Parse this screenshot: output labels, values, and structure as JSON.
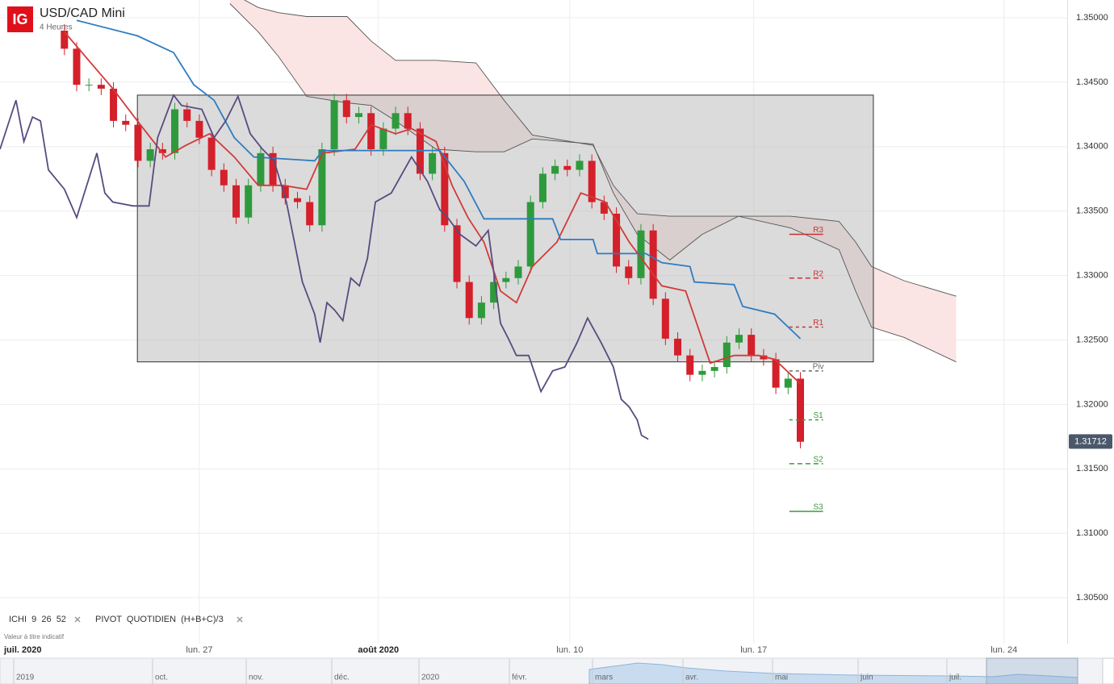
{
  "header": {
    "logo": "IG",
    "title": "USD/CAD Mini",
    "subtitle": "4 Heures"
  },
  "chart_data": {
    "type": "candlestick",
    "x": [
      10.5,
      12.5,
      14.5,
      16.5,
      18.5,
      20.5,
      22.5,
      24.5,
      26.5,
      28.5,
      30.5,
      32.5,
      34.5,
      36.5,
      38.5,
      40.5,
      42.5,
      44.5,
      46.5,
      48.5,
      50.5,
      52.5,
      54.5,
      56.5,
      58.5,
      60.5,
      62.5,
      64.5,
      66.5,
      68.5,
      70.5,
      72.5,
      74.5,
      76.5,
      78.5,
      80.5,
      82.5,
      84.5,
      86.5,
      88.5,
      90.5,
      92.5,
      94.5,
      96.5,
      98.5,
      100.5,
      102.5,
      104.5,
      106.5,
      108.5,
      110.5,
      112.5,
      114.5,
      116.5,
      118.5,
      120.5,
      122.5,
      124.5,
      126.5,
      128.5,
      130.5
    ],
    "open": [
      1.349,
      1.3476,
      1.3448,
      1.3448,
      1.3445,
      1.342,
      1.3417,
      1.3389,
      1.3398,
      1.3395,
      1.3429,
      1.342,
      1.3407,
      1.3382,
      1.337,
      1.3345,
      1.337,
      1.3395,
      1.337,
      1.336,
      1.3357,
      1.3339,
      1.3398,
      1.3436,
      1.3423,
      1.3426,
      1.3398,
      1.3414,
      1.3426,
      1.3414,
      1.3379,
      1.3395,
      1.3339,
      1.3295,
      1.3267,
      1.3279,
      1.3295,
      1.3298,
      1.3307,
      1.3357,
      1.3379,
      1.3385,
      1.3382,
      1.3389,
      1.3357,
      1.3348,
      1.3307,
      1.3298,
      1.3335,
      1.3282,
      1.3251,
      1.3238,
      1.3223,
      1.3226,
      1.3229,
      1.3248,
      1.3254,
      1.3238,
      1.3235,
      1.3213,
      1.322
    ],
    "high": [
      1.3495,
      1.3481,
      1.3453,
      1.3453,
      1.345,
      1.3425,
      1.3422,
      1.3403,
      1.3403,
      1.3434,
      1.3434,
      1.3425,
      1.3412,
      1.3387,
      1.3375,
      1.3375,
      1.34,
      1.34,
      1.3375,
      1.3365,
      1.3362,
      1.3403,
      1.3441,
      1.3441,
      1.3431,
      1.3431,
      1.3419,
      1.3431,
      1.3431,
      1.3419,
      1.34,
      1.34,
      1.3344,
      1.33,
      1.3284,
      1.33,
      1.3303,
      1.3312,
      1.3362,
      1.3384,
      1.339,
      1.339,
      1.3394,
      1.3394,
      1.3362,
      1.3353,
      1.3312,
      1.334,
      1.334,
      1.3287,
      1.3256,
      1.3243,
      1.3231,
      1.3234,
      1.3253,
      1.3259,
      1.3259,
      1.3243,
      1.324,
      1.3225,
      1.3225
    ],
    "low": [
      1.3471,
      1.3443,
      1.3443,
      1.344,
      1.3415,
      1.3412,
      1.3384,
      1.3384,
      1.339,
      1.339,
      1.3415,
      1.3402,
      1.3377,
      1.3365,
      1.334,
      1.334,
      1.3365,
      1.3365,
      1.3355,
      1.3352,
      1.3334,
      1.3334,
      1.3393,
      1.3418,
      1.3418,
      1.3393,
      1.3393,
      1.3409,
      1.3409,
      1.3374,
      1.3374,
      1.3334,
      1.329,
      1.3262,
      1.3262,
      1.3274,
      1.329,
      1.3293,
      1.3302,
      1.3352,
      1.3374,
      1.3377,
      1.3377,
      1.3352,
      1.3343,
      1.3302,
      1.3293,
      1.3293,
      1.3277,
      1.3246,
      1.3233,
      1.3218,
      1.3218,
      1.3221,
      1.3224,
      1.3243,
      1.3233,
      1.323,
      1.3208,
      1.3208,
      1.3166
    ],
    "close": [
      1.3476,
      1.3448,
      1.3448,
      1.3445,
      1.342,
      1.3417,
      1.3389,
      1.3398,
      1.3395,
      1.3429,
      1.342,
      1.3407,
      1.3382,
      1.337,
      1.3345,
      1.337,
      1.3395,
      1.337,
      1.336,
      1.3357,
      1.3339,
      1.3398,
      1.3436,
      1.3423,
      1.3426,
      1.3398,
      1.3414,
      1.3426,
      1.3414,
      1.3379,
      1.3395,
      1.3339,
      1.3295,
      1.3267,
      1.3279,
      1.3295,
      1.3298,
      1.3307,
      1.3357,
      1.3379,
      1.3385,
      1.3382,
      1.3389,
      1.3357,
      1.3348,
      1.3307,
      1.3298,
      1.3335,
      1.3282,
      1.3251,
      1.3238,
      1.3223,
      1.3226,
      1.3229,
      1.3248,
      1.3254,
      1.3238,
      1.3235,
      1.3213,
      1.322,
      1.3171
    ],
    "up_color": "#2e9a3c",
    "down_color": "#d4202a",
    "lines": [
      {
        "color": "#d23a3a",
        "x": [
          10.5,
          18.4,
          22.4,
          27,
          30.3,
          34.2,
          38.2,
          42.1,
          46.1,
          50,
          52.6,
          57.9,
          60.5,
          64.5,
          67.1,
          71.1,
          73.7,
          76.3,
          78.9,
          81.6,
          84.2,
          86.8,
          90.8,
          94.7,
          98.7,
          102.6,
          107.9,
          111.8,
          115.8,
          119.7,
          123.7,
          126.3,
          130.5
        ],
        "values": [
          1.3489,
          1.3445,
          1.342,
          1.3392,
          1.3401,
          1.341,
          1.3392,
          1.337,
          1.337,
          1.3367,
          1.3395,
          1.3398,
          1.3417,
          1.341,
          1.3414,
          1.3404,
          1.337,
          1.3345,
          1.3326,
          1.3288,
          1.3279,
          1.3307,
          1.3326,
          1.3364,
          1.3357,
          1.3326,
          1.3292,
          1.3288,
          1.3232,
          1.3238,
          1.3238,
          1.3235,
          1.3216
        ]
      },
      {
        "color": "#2f7bc0",
        "x": [
          12.5,
          22.4,
          28.3,
          31.6,
          34.9,
          38.2,
          41.4,
          51.3,
          52.6,
          71.7,
          75.7,
          78.9,
          90.1,
          91.4,
          96.7,
          97.4,
          105.3,
          107.9,
          112.5,
          113.2,
          119.7,
          121.1,
          126.3,
          130.5
        ],
        "values": [
          1.3498,
          1.3486,
          1.3473,
          1.3448,
          1.3436,
          1.3407,
          1.3392,
          1.3389,
          1.3397,
          1.3397,
          1.3373,
          1.3344,
          1.3344,
          1.3328,
          1.3328,
          1.3317,
          1.3317,
          1.331,
          1.3307,
          1.3295,
          1.3293,
          1.3276,
          1.327,
          1.3251
        ]
      },
      {
        "color": "#5a4a80",
        "x": [
          0,
          2.6,
          3.9,
          5.3,
          6.6,
          7.9,
          10.5,
          12.5,
          15.8,
          17.1,
          18.4,
          21.7,
          24.3,
          25.7,
          28.3,
          29.6,
          32.9,
          34.9,
          36.8,
          38.8,
          40.8,
          42.8,
          44.7,
          46.7,
          49.3,
          51.3,
          52.2,
          53.3,
          54.6,
          55.9,
          57.2,
          58.6,
          59.9,
          61.2,
          63.8,
          67.1,
          69.7,
          71.7,
          73,
          75,
          77.6,
          79.6,
          81.6,
          82.9,
          84.2,
          86.2,
          88.2,
          90.1,
          92.1,
          94.1,
          95.8,
          98,
          100,
          101.3,
          102.6,
          103.9,
          104.6,
          105.7
        ],
        "values": [
          1.3398,
          1.3436,
          1.3404,
          1.3423,
          1.342,
          1.3382,
          1.3367,
          1.3345,
          1.3395,
          1.3364,
          1.3357,
          1.3354,
          1.3354,
          1.3407,
          1.344,
          1.3432,
          1.3429,
          1.3407,
          1.342,
          1.3439,
          1.341,
          1.3398,
          1.3389,
          1.3357,
          1.3295,
          1.327,
          1.3248,
          1.3279,
          1.3273,
          1.3265,
          1.3298,
          1.3292,
          1.3313,
          1.3357,
          1.3364,
          1.3392,
          1.3373,
          1.3351,
          1.3345,
          1.3332,
          1.3323,
          1.3335,
          1.3263,
          1.3251,
          1.3238,
          1.3238,
          1.321,
          1.3226,
          1.3229,
          1.3248,
          1.3267,
          1.3248,
          1.3229,
          1.3204,
          1.3198,
          1.3188,
          1.3176,
          1.3173
        ]
      }
    ],
    "cloud": {
      "color": "#fbe4e4",
      "line_color": "#555555",
      "x": [
        37.5,
        42.1,
        45.4,
        50,
        56.6,
        60.5,
        64.5,
        71.1,
        77.6,
        82.2,
        86.8,
        96.7,
        100,
        103.9,
        109.2,
        114.5,
        120.4,
        128.9,
        136.8,
        139.5,
        142.1,
        147.4,
        155.9
      ],
      "span_a": [
        1.3511,
        1.3489,
        1.347,
        1.3439,
        1.3434,
        1.3432,
        1.342,
        1.3398,
        1.3396,
        1.3396,
        1.3406,
        1.3402,
        1.3364,
        1.3332,
        1.3312,
        1.3332,
        1.3346,
        1.3337,
        1.332,
        1.3288,
        1.326,
        1.3252,
        1.3233
      ],
      "span_b": [
        1.352,
        1.3508,
        1.3504,
        1.3501,
        1.3501,
        1.3482,
        1.3467,
        1.3467,
        1.3465,
        1.3436,
        1.3409,
        1.3401,
        1.337,
        1.3348,
        1.3346,
        1.3346,
        1.3346,
        1.3346,
        1.3342,
        1.3326,
        1.3307,
        1.3296,
        1.3284
      ]
    },
    "zone": {
      "x": [
        22.4,
        142.4
      ],
      "y": [
        1.344,
        1.3233
      ],
      "color": "#bdbdbd"
    },
    "pivot_x": [
      128.7,
      134.2
    ],
    "pivots": [
      {
        "label": "R3",
        "value": 1.3332,
        "color": "#c83232",
        "dash": "none"
      },
      {
        "label": "R2",
        "value": 1.3298,
        "color": "#c83232",
        "dash": "6,4"
      },
      {
        "label": "R1",
        "value": 1.326,
        "color": "#c83232",
        "dash": "4,4"
      },
      {
        "label": "Piv",
        "value": 1.3226,
        "color": "#666666",
        "dash": "4,4"
      },
      {
        "label": "S1",
        "value": 1.3188,
        "color": "#3a9a3a",
        "dash": "4,4"
      },
      {
        "label": "S2",
        "value": 1.3154,
        "color": "#3a9a3a",
        "dash": "6,4"
      },
      {
        "label": "S3",
        "value": 1.3117,
        "color": "#3a9a3a",
        "dash": "none"
      }
    ],
    "last_price": 1.31712,
    "last_price_color": "#4b586b",
    "xlim": [
      0,
      174
    ],
    "xticks": [
      {
        "value": 3.5,
        "label": "juil. 2020"
      },
      {
        "value": 32.5,
        "label": "lun. 27"
      },
      {
        "value": 61.7,
        "label": "août 2020"
      },
      {
        "value": 92.9,
        "label": "lun. 10"
      },
      {
        "value": 122.9,
        "label": "lun. 17"
      },
      {
        "value": 163.7,
        "label": "lun. 24"
      }
    ],
    "ylim": [
      1.30131,
      1.35138
    ],
    "yticks": [
      {
        "value": 1.35,
        "label": "1.35000"
      },
      {
        "value": 1.345,
        "label": "1.34500"
      },
      {
        "value": 1.34,
        "label": "1.34000"
      },
      {
        "value": 1.335,
        "label": "1.33500"
      },
      {
        "value": 1.33,
        "label": "1.33000"
      },
      {
        "value": 1.325,
        "label": "1.32500"
      },
      {
        "value": 1.32,
        "label": "1.32000"
      },
      {
        "value": 1.315,
        "label": "1.31500"
      },
      {
        "value": 1.31,
        "label": "1.31000"
      },
      {
        "value": 1.305,
        "label": "1.30500"
      }
    ],
    "grid": true
  },
  "indicators": [
    "ICHI  9  26  52",
    "PIVOT  QUOTIDIEN  (H+B+C)/3"
  ],
  "note": "Valeur à titre indicatif",
  "navigator": [
    "2019",
    "oct.",
    "nov.",
    "déc.",
    "2020",
    "févr.",
    "mars",
    "avr.",
    "mai",
    "juin",
    "juil."
  ]
}
